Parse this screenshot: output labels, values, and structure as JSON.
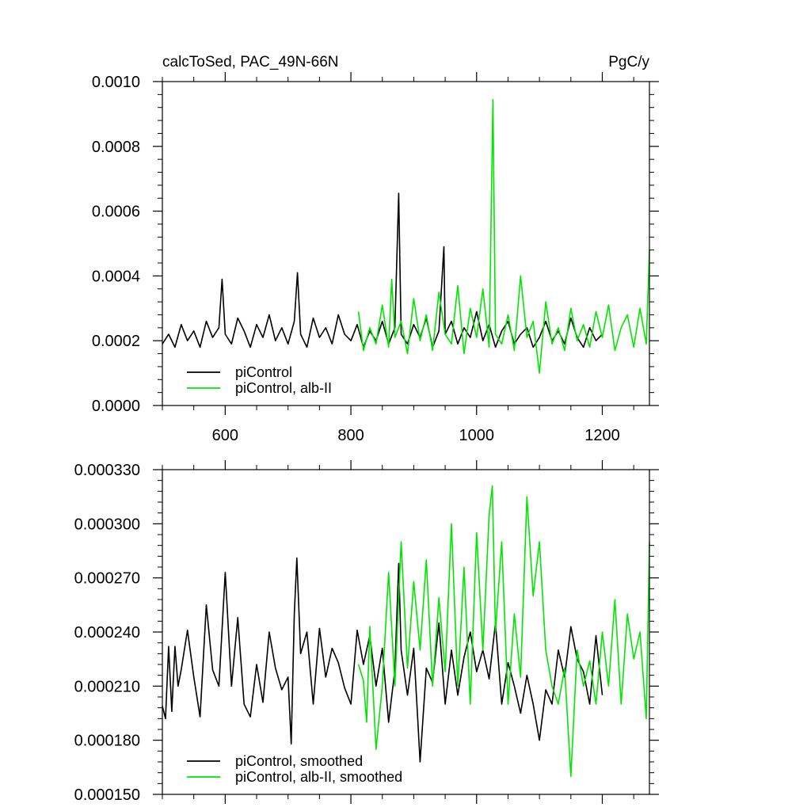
{
  "chart_data": [
    {
      "type": "line",
      "title_left": "calcToSed, PAC_49N-66N",
      "title_right": "PgC/y",
      "xlim": [
        500,
        1275
      ],
      "ylim": [
        0.0,
        0.001
      ],
      "xticks": [
        600,
        800,
        1000,
        1200
      ],
      "xtick_labels": [
        "600",
        "800",
        "1000",
        "1200"
      ],
      "yticks": [
        0.0,
        0.0002,
        0.0004,
        0.0006,
        0.0008,
        0.001
      ],
      "ytick_labels": [
        "0.0000",
        "0.0002",
        "0.0004",
        "0.0006",
        "0.0008",
        "0.0010"
      ],
      "legend_placement": "bottom-left",
      "series": [
        {
          "name": "piControl",
          "color": "#000000",
          "x": [
            500,
            510,
            520,
            530,
            540,
            550,
            560,
            570,
            580,
            590,
            595,
            600,
            610,
            620,
            630,
            640,
            650,
            660,
            670,
            680,
            690,
            700,
            710,
            715,
            720,
            730,
            740,
            750,
            760,
            770,
            780,
            790,
            800,
            810,
            820,
            830,
            840,
            850,
            860,
            870,
            876,
            880,
            890,
            900,
            910,
            920,
            930,
            940,
            948,
            950,
            960,
            970,
            980,
            990,
            1000,
            1010,
            1020,
            1030,
            1040,
            1050,
            1060,
            1070,
            1080,
            1090,
            1100,
            1110,
            1120,
            1130,
            1140,
            1150,
            1160,
            1170,
            1180,
            1190,
            1200
          ],
          "y": [
            0.00019,
            0.00022,
            0.00018,
            0.00025,
            0.0002,
            0.00023,
            0.00018,
            0.00026,
            0.00021,
            0.00024,
            0.00039,
            0.00022,
            0.00019,
            0.00027,
            0.00023,
            0.00018,
            0.00025,
            0.00021,
            0.00028,
            0.0002,
            0.00024,
            0.00019,
            0.00026,
            0.00041,
            0.00022,
            0.00018,
            0.00027,
            0.00021,
            0.00024,
            0.00019,
            0.00028,
            0.00022,
            0.0002,
            0.00025,
            0.00018,
            0.00023,
            0.0002,
            0.00026,
            0.00019,
            0.00024,
            0.000655,
            0.00022,
            0.00019,
            0.00025,
            0.00021,
            0.00027,
            0.00018,
            0.00023,
            0.00049,
            0.00022,
            0.00026,
            0.00019,
            0.00024,
            0.00021,
            0.00029,
            0.0002,
            0.00025,
            0.00018,
            0.00023,
            0.00026,
            0.00019,
            0.00022,
            0.00024,
            0.00018,
            0.00021,
            0.00026,
            0.0002,
            0.00023,
            0.00019,
            0.00027,
            0.00021,
            0.00018,
            0.00024,
            0.0002,
            0.00022
          ]
        },
        {
          "name": "piControl, alb-II",
          "color": "#00e600",
          "x": [
            812,
            820,
            830,
            840,
            850,
            860,
            865,
            870,
            880,
            890,
            900,
            910,
            920,
            930,
            940,
            950,
            960,
            970,
            980,
            990,
            1000,
            1010,
            1020,
            1026,
            1030,
            1040,
            1050,
            1060,
            1070,
            1080,
            1090,
            1100,
            1110,
            1120,
            1130,
            1140,
            1150,
            1160,
            1170,
            1180,
            1190,
            1200,
            1210,
            1220,
            1230,
            1240,
            1250,
            1260,
            1270,
            1275
          ],
          "y": [
            0.00029,
            0.00017,
            0.00024,
            0.00019,
            0.00031,
            0.00018,
            0.00039,
            0.00021,
            0.00026,
            0.00016,
            0.00033,
            0.0002,
            0.00028,
            0.00017,
            0.00035,
            0.00022,
            0.00019,
            0.00037,
            0.00016,
            0.0003,
            0.00021,
            0.00036,
            0.00018,
            0.000945,
            0.00022,
            0.00019,
            0.00028,
            0.00017,
            0.0004,
            0.00021,
            0.00026,
            0.0001,
            0.00032,
            0.00019,
            0.00024,
            0.00017,
            0.0003,
            0.0002,
            0.00025,
            0.00018,
            0.00029,
            0.00021,
            0.00031,
            0.00017,
            0.00024,
            0.00028,
            0.00018,
            0.0003,
            0.00019,
            0.00048
          ]
        }
      ]
    },
    {
      "type": "line",
      "xlim": [
        500,
        1275
      ],
      "ylim": [
        0.00015,
        0.00033
      ],
      "xticks": [
        600,
        800,
        1000,
        1200
      ],
      "yticks": [
        0.00015,
        0.00018,
        0.00021,
        0.00024,
        0.00027,
        0.0003,
        0.00033
      ],
      "ytick_labels": [
        "0.000150",
        "0.000180",
        "0.000210",
        "0.000240",
        "0.000270",
        "0.000300",
        "0.000330"
      ],
      "legend_placement": "bottom-left",
      "series": [
        {
          "name": "piControl, smoothed",
          "color": "#000000",
          "x": [
            500,
            505,
            510,
            515,
            520,
            525,
            530,
            540,
            550,
            560,
            570,
            580,
            590,
            600,
            610,
            620,
            630,
            640,
            650,
            660,
            670,
            680,
            690,
            700,
            705,
            710,
            714,
            720,
            730,
            740,
            750,
            760,
            770,
            780,
            790,
            800,
            810,
            820,
            830,
            840,
            850,
            860,
            870,
            876,
            880,
            890,
            900,
            905,
            910,
            920,
            930,
            940,
            950,
            960,
            970,
            980,
            990,
            1000,
            1010,
            1020,
            1030,
            1040,
            1050,
            1060,
            1070,
            1080,
            1090,
            1100,
            1110,
            1120,
            1130,
            1140,
            1150,
            1160,
            1170,
            1180,
            1190,
            1200
          ],
          "y": [
            0.000199,
            0.000192,
            0.000232,
            0.000196,
            0.000232,
            0.00021,
            0.000219,
            0.000241,
            0.000215,
            0.000193,
            0.000255,
            0.000219,
            0.00021,
            0.000273,
            0.00021,
            0.000248,
            0.0002,
            0.000193,
            0.000222,
            0.000201,
            0.00024,
            0.00022,
            0.000208,
            0.000215,
            0.000178,
            0.00025,
            0.000281,
            0.000228,
            0.00024,
            0.0002,
            0.000242,
            0.000215,
            0.000231,
            0.000223,
            0.000209,
            0.0002,
            0.000241,
            0.000222,
            0.000238,
            0.00021,
            0.000231,
            0.00019,
            0.000219,
            0.000278,
            0.00023,
            0.000205,
            0.000231,
            0.0002,
            0.000168,
            0.00022,
            0.000212,
            0.000245,
            0.0002,
            0.00023,
            0.000205,
            0.000226,
            0.00024,
            0.000218,
            0.00023,
            0.000214,
            0.000245,
            0.0002,
            0.000223,
            0.00021,
            0.000195,
            0.000216,
            0.0002,
            0.00018,
            0.000208,
            0.0002,
            0.00023,
            0.000215,
            0.000243,
            0.000225,
            0.000218,
            0.0002,
            0.000238,
            0.000205
          ]
        },
        {
          "name": "piControl, alb-II, smoothed",
          "color": "#00e600",
          "x": [
            812,
            820,
            825,
            830,
            840,
            850,
            860,
            870,
            880,
            890,
            900,
            910,
            920,
            930,
            940,
            950,
            960,
            970,
            980,
            990,
            1000,
            1010,
            1020,
            1025,
            1030,
            1040,
            1050,
            1060,
            1070,
            1080,
            1090,
            1100,
            1110,
            1120,
            1130,
            1140,
            1150,
            1160,
            1170,
            1180,
            1190,
            1200,
            1210,
            1220,
            1230,
            1240,
            1250,
            1260,
            1270,
            1275
          ],
          "y": [
            0.000222,
            0.000213,
            0.00019,
            0.000243,
            0.000175,
            0.00021,
            0.000273,
            0.00021,
            0.00029,
            0.00022,
            0.000268,
            0.00023,
            0.00028,
            0.00021,
            0.000259,
            0.000218,
            0.0003,
            0.00021,
            0.000276,
            0.0002,
            0.000295,
            0.00023,
            0.000305,
            0.000321,
            0.00024,
            0.00029,
            0.0002,
            0.00025,
            0.000215,
            0.000315,
            0.00026,
            0.00029,
            0.00023,
            0.00021,
            0.0002,
            0.00022,
            0.00016,
            0.00023,
            0.00021,
            0.000224,
            0.0002,
            0.00024,
            0.00021,
            0.000258,
            0.0002,
            0.00025,
            0.000225,
            0.00024,
            0.000192,
            0.00029
          ]
        }
      ]
    }
  ]
}
